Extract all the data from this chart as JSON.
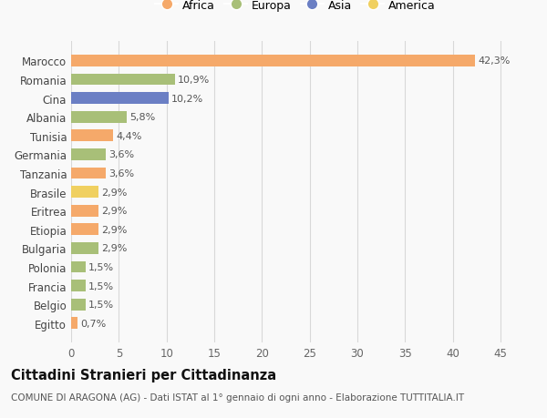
{
  "categories": [
    "Egitto",
    "Belgio",
    "Francia",
    "Polonia",
    "Bulgaria",
    "Etiopia",
    "Eritrea",
    "Brasile",
    "Tanzania",
    "Germania",
    "Tunisia",
    "Albania",
    "Cina",
    "Romania",
    "Marocco"
  ],
  "values": [
    0.7,
    1.5,
    1.5,
    1.5,
    2.9,
    2.9,
    2.9,
    2.9,
    3.6,
    3.6,
    4.4,
    5.8,
    10.2,
    10.9,
    42.3
  ],
  "colors": [
    "#f5a96a",
    "#a8bf78",
    "#a8bf78",
    "#a8bf78",
    "#a8bf78",
    "#f5a96a",
    "#f5a96a",
    "#f0d060",
    "#f5a96a",
    "#a8bf78",
    "#f5a96a",
    "#a8bf78",
    "#6b7fc4",
    "#a8bf78",
    "#f5a96a"
  ],
  "labels": [
    "0,7%",
    "1,5%",
    "1,5%",
    "1,5%",
    "2,9%",
    "2,9%",
    "2,9%",
    "2,9%",
    "3,6%",
    "3,6%",
    "4,4%",
    "5,8%",
    "10,2%",
    "10,9%",
    "42,3%"
  ],
  "legend": [
    {
      "label": "Africa",
      "color": "#f5a96a"
    },
    {
      "label": "Europa",
      "color": "#a8bf78"
    },
    {
      "label": "Asia",
      "color": "#6b7fc4"
    },
    {
      "label": "America",
      "color": "#f0d060"
    }
  ],
  "title": "Cittadini Stranieri per Cittadinanza",
  "subtitle": "COMUNE DI ARAGONA (AG) - Dati ISTAT al 1° gennaio di ogni anno - Elaborazione TUTTITALIA.IT",
  "xlim": [
    0,
    47
  ],
  "xticks": [
    0,
    5,
    10,
    15,
    20,
    25,
    30,
    35,
    40,
    45
  ],
  "bg_color": "#f9f9f9",
  "grid_color": "#d8d8d8",
  "bar_height": 0.62,
  "label_fontsize": 8.0,
  "tick_fontsize": 8.5,
  "ylabel_fontsize": 8.5,
  "title_fontsize": 10.5,
  "subtitle_fontsize": 7.5
}
